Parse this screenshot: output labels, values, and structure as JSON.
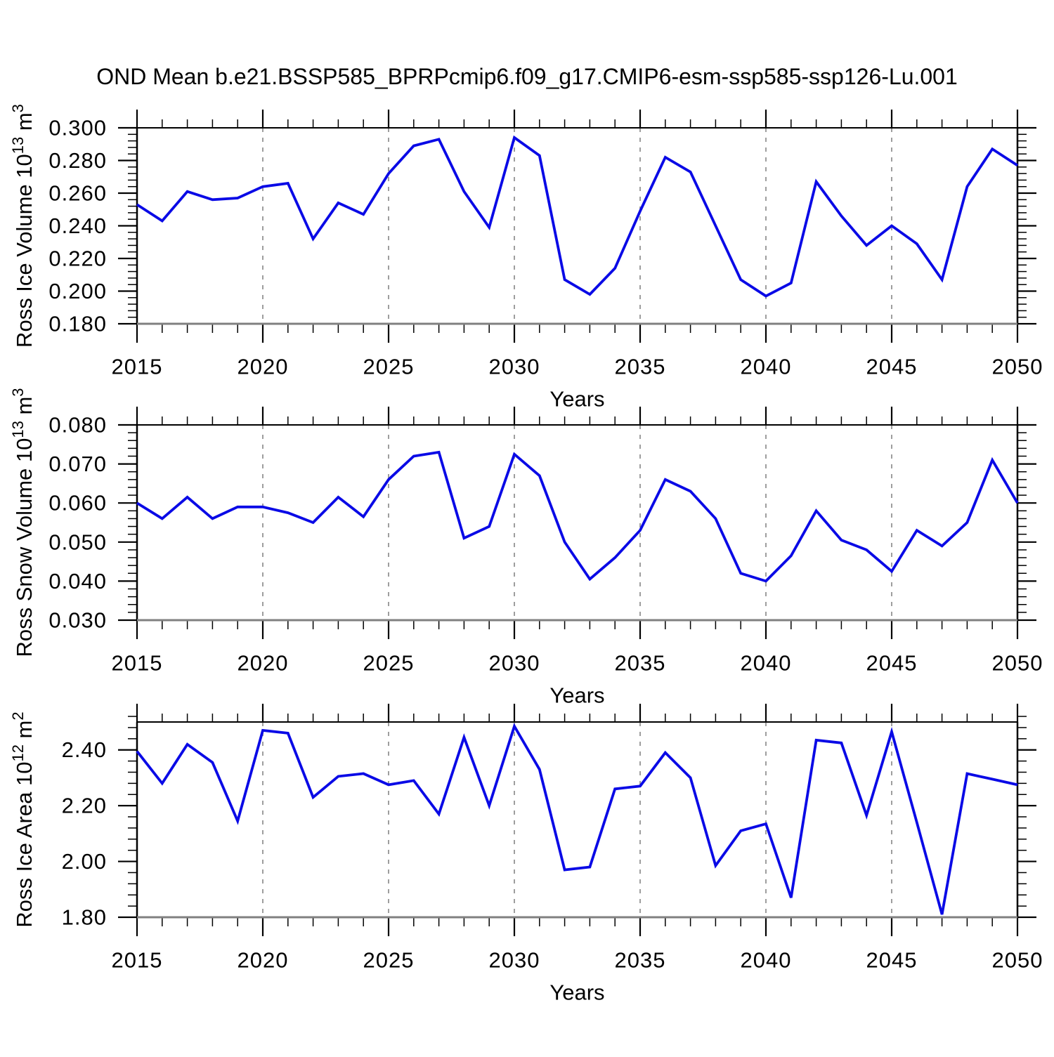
{
  "title": "OND Mean b.e21.BSSP585_BPRPcmip6.f09_g17.CMIP6-esm-ssp585-ssp126-Lu.001",
  "xlabel": "Years",
  "colors": {
    "line": "#0a0ae6",
    "grid": "#9e9e9e",
    "axis": "#000000",
    "baseline": "#808080",
    "text": "#000000"
  },
  "x_axis": {
    "start": 2015,
    "end": 2050,
    "major_step": 5,
    "minor_step": 1,
    "grid_years": [
      2020,
      2025,
      2030,
      2035,
      2040,
      2045
    ],
    "tick_labels": [
      "2015",
      "2020",
      "2025",
      "2030",
      "2035",
      "2040",
      "2045",
      "2050"
    ]
  },
  "chart_data": [
    {
      "type": "line",
      "name": "ross-ice-volume",
      "ylabel": "Ross Ice Volume 10^13 m^3",
      "ylabel_parts": [
        {
          "text": "Ross Ice Volume 10"
        },
        {
          "text": "13",
          "sup": true
        },
        {
          "text": " m"
        },
        {
          "text": "3",
          "sup": true
        }
      ],
      "ylim": [
        0.18,
        0.3
      ],
      "ymajor": 0.02,
      "yminor": 0.004,
      "ydecimals": 3,
      "x_range": [
        2015,
        2050
      ],
      "values": [
        0.253,
        0.243,
        0.261,
        0.256,
        0.257,
        0.264,
        0.266,
        0.232,
        0.254,
        0.247,
        0.272,
        0.289,
        0.293,
        0.261,
        0.239,
        0.294,
        0.283,
        0.207,
        0.198,
        0.214,
        0.249,
        0.282,
        0.273,
        0.24,
        0.207,
        0.197,
        0.205,
        0.267,
        0.246,
        0.228,
        0.24,
        0.229,
        0.207,
        0.264,
        0.287,
        0.277
      ]
    },
    {
      "type": "line",
      "name": "ross-snow-volume",
      "ylabel": "Ross Snow Volume 10^13 m^3",
      "ylabel_parts": [
        {
          "text": "Ross Snow Volume 10"
        },
        {
          "text": "13",
          "sup": true
        },
        {
          "text": " m"
        },
        {
          "text": "3",
          "sup": true
        }
      ],
      "ylim": [
        0.03,
        0.08
      ],
      "ymajor": 0.01,
      "yminor": 0.002,
      "ydecimals": 3,
      "x_range": [
        2015,
        2050
      ],
      "values": [
        0.06,
        0.056,
        0.0615,
        0.056,
        0.059,
        0.059,
        0.0575,
        0.055,
        0.0615,
        0.0565,
        0.066,
        0.072,
        0.073,
        0.051,
        0.054,
        0.0725,
        0.067,
        0.05,
        0.0405,
        0.046,
        0.053,
        0.066,
        0.063,
        0.056,
        0.042,
        0.04,
        0.0465,
        0.058,
        0.0505,
        0.048,
        0.0425,
        0.053,
        0.049,
        0.055,
        0.071,
        0.06
      ]
    },
    {
      "type": "line",
      "name": "ross-ice-area",
      "ylabel": "Ross Ice Area 10^12 m^2",
      "ylabel_parts": [
        {
          "text": "Ross Ice Area 10"
        },
        {
          "text": "12",
          "sup": true
        },
        {
          "text": " m"
        },
        {
          "text": "2",
          "sup": true
        }
      ],
      "ylim": [
        1.8,
        2.5
      ],
      "ymajor": 0.2,
      "yminor": 0.04,
      "ydecimals": 2,
      "x_range": [
        2015,
        2050
      ],
      "values": [
        2.395,
        2.28,
        2.42,
        2.355,
        2.145,
        2.47,
        2.46,
        2.23,
        2.305,
        2.315,
        2.275,
        2.29,
        2.17,
        2.445,
        2.2,
        2.485,
        2.33,
        1.97,
        1.98,
        2.26,
        2.27,
        2.39,
        2.3,
        1.985,
        2.11,
        2.135,
        1.87,
        2.435,
        2.425,
        2.165,
        2.465,
        2.14,
        1.81,
        2.315,
        2.295,
        2.275
      ]
    }
  ]
}
